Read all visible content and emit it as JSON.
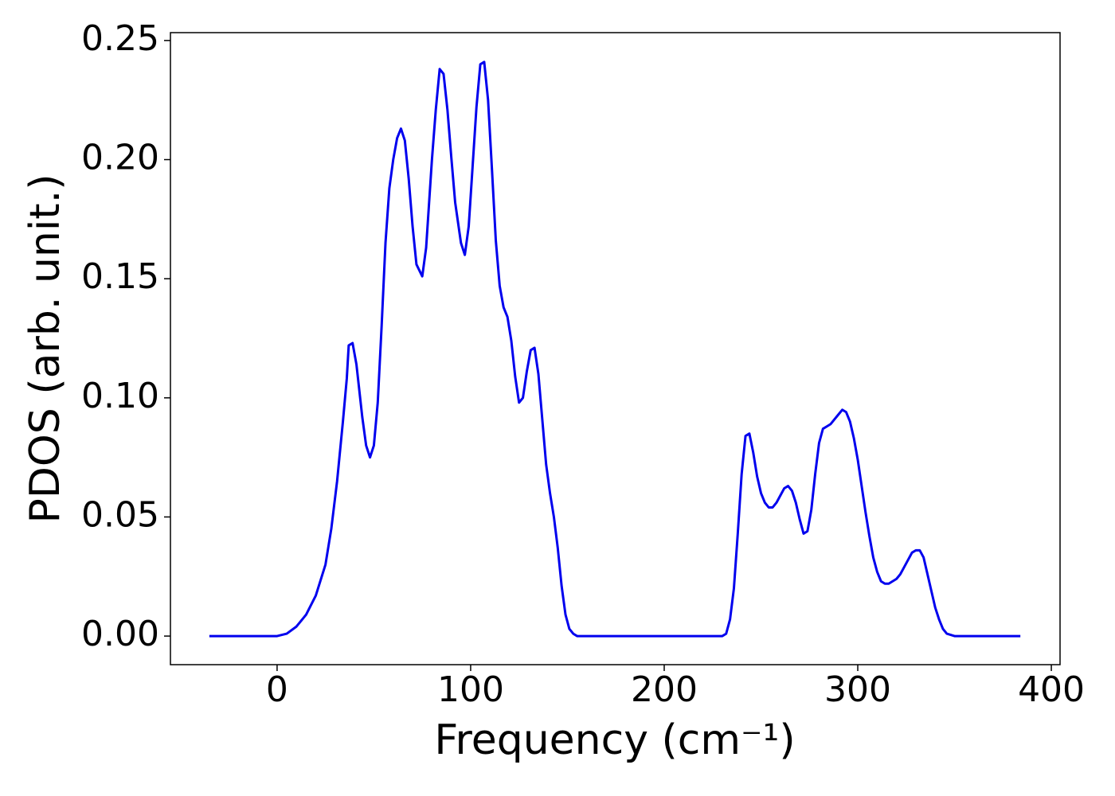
{
  "chart_data": {
    "type": "line",
    "xlabel": "Frequency (cm⁻¹)",
    "ylabel": "PDOS (arb. unit.)",
    "xlim": [
      -55.1,
      404.5
    ],
    "ylim": [
      -0.012,
      0.2533
    ],
    "xticks": [
      0,
      100,
      200,
      300,
      400
    ],
    "yticks": [
      {
        "value": 0,
        "label": "0.00"
      },
      {
        "value": 0.05,
        "label": "0.05"
      },
      {
        "value": 0.1,
        "label": "0.10"
      },
      {
        "value": 0.15,
        "label": "0.15"
      },
      {
        "value": 0.2,
        "label": "0.20"
      },
      {
        "value": 0.25,
        "label": "0.25"
      }
    ],
    "series": [
      {
        "color": "#0000ee",
        "x": [
          -35,
          0,
          5,
          10,
          15,
          20,
          25,
          28,
          31,
          34,
          36,
          37,
          39,
          41,
          44,
          46,
          48,
          50,
          52,
          54,
          56,
          58,
          60,
          62,
          64,
          66,
          68,
          70,
          72,
          75,
          77,
          80,
          82,
          84,
          86,
          88,
          90,
          92,
          95,
          97,
          99,
          101,
          103,
          105,
          107,
          109,
          111,
          113,
          115,
          117,
          119,
          121,
          123,
          125,
          127,
          129,
          131,
          133,
          135,
          137,
          139,
          141,
          143,
          145,
          147,
          149,
          151,
          153,
          155,
          160,
          230,
          232,
          234,
          236,
          238,
          240,
          242,
          244,
          246,
          248,
          250,
          252,
          254,
          256,
          258,
          260,
          262,
          264,
          266,
          268,
          270,
          272,
          274,
          276,
          278,
          280,
          282,
          284,
          286,
          288,
          290,
          292,
          294,
          296,
          298,
          300,
          302,
          304,
          306,
          308,
          310,
          312,
          314,
          316,
          318,
          320,
          322,
          324,
          326,
          328,
          330,
          332,
          334,
          336,
          338,
          340,
          342,
          344,
          346,
          350,
          384
        ],
        "values": [
          0,
          0,
          0.001,
          0.004,
          0.009,
          0.017,
          0.03,
          0.045,
          0.065,
          0.09,
          0.108,
          0.122,
          0.123,
          0.114,
          0.092,
          0.08,
          0.075,
          0.08,
          0.098,
          0.13,
          0.165,
          0.188,
          0.2,
          0.209,
          0.213,
          0.208,
          0.192,
          0.172,
          0.156,
          0.151,
          0.163,
          0.2,
          0.221,
          0.238,
          0.236,
          0.221,
          0.201,
          0.182,
          0.165,
          0.16,
          0.172,
          0.197,
          0.222,
          0.24,
          0.241,
          0.225,
          0.196,
          0.166,
          0.147,
          0.138,
          0.134,
          0.124,
          0.109,
          0.098,
          0.1,
          0.111,
          0.12,
          0.121,
          0.11,
          0.091,
          0.072,
          0.06,
          0.05,
          0.037,
          0.021,
          0.009,
          0.003,
          0.001,
          0,
          0,
          0,
          0.001,
          0.007,
          0.02,
          0.043,
          0.068,
          0.084,
          0.085,
          0.077,
          0.067,
          0.06,
          0.056,
          0.054,
          0.054,
          0.056,
          0.059,
          0.062,
          0.063,
          0.061,
          0.056,
          0.049,
          0.043,
          0.044,
          0.053,
          0.068,
          0.081,
          0.087,
          0.088,
          0.089,
          0.091,
          0.093,
          0.095,
          0.094,
          0.09,
          0.083,
          0.074,
          0.063,
          0.052,
          0.042,
          0.033,
          0.027,
          0.023,
          0.022,
          0.022,
          0.023,
          0.024,
          0.026,
          0.029,
          0.032,
          0.035,
          0.036,
          0.036,
          0.033,
          0.026,
          0.019,
          0.012,
          0.007,
          0.003,
          0.001,
          0,
          0
        ]
      }
    ]
  }
}
